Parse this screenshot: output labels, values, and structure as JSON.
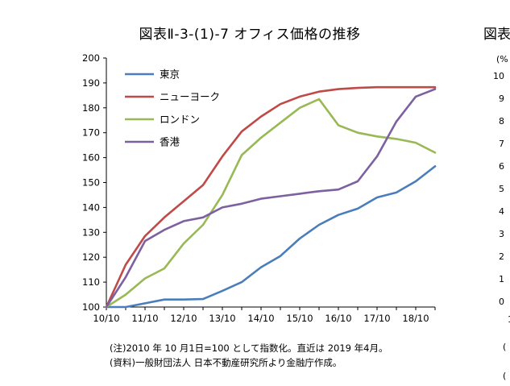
{
  "title": "図表Ⅱ-3-(1)-7 オフィス価格の推移",
  "right_panel": {
    "title": "図表",
    "unit": "(%",
    "y_ticks": [
      "10",
      "9",
      "8",
      "7",
      "6",
      "5",
      "4",
      "3",
      "2",
      "1",
      "0"
    ],
    "x_first": "1",
    "note_1": "(",
    "note_2": "("
  },
  "notes": {
    "line1": "(注)2010 年 10 月1日=100 として指数化。直近は 2019 年4月。",
    "line2": "(資料)一般財団法人 日本不動産研究所より金融庁作成。"
  },
  "chart_data": {
    "type": "line",
    "x_tick_labels": [
      "10/10",
      "11/10",
      "12/10",
      "13/10",
      "14/10",
      "15/10",
      "16/10",
      "17/10",
      "18/10"
    ],
    "x": [
      "2010/10",
      "2011/04",
      "2011/10",
      "2012/04",
      "2012/10",
      "2013/04",
      "2013/10",
      "2014/04",
      "2014/10",
      "2015/04",
      "2015/10",
      "2016/04",
      "2016/10",
      "2017/04",
      "2017/10",
      "2018/04",
      "2018/10",
      "2019/04"
    ],
    "ylim": [
      100,
      200
    ],
    "y_ticks": [
      100,
      110,
      120,
      130,
      140,
      150,
      160,
      170,
      180,
      190,
      200
    ],
    "legend_position": "top-left",
    "grid": false,
    "series": [
      {
        "name": "東京",
        "color": "#4a7ebb",
        "values": [
          100,
          100,
          101.5,
          103,
          103,
          103.2,
          106.5,
          110,
          116,
          120.5,
          127.5,
          133,
          137,
          139.5,
          144,
          146,
          150.5,
          156.5
        ]
      },
      {
        "name": "ニューヨーク",
        "color": "#be4b48",
        "values": [
          100,
          117,
          128.5,
          136,
          142.5,
          149,
          160.5,
          170.5,
          176.5,
          181.5,
          184.5,
          186.5,
          187.5,
          188,
          188.3,
          188.3,
          188.3,
          188.3
        ]
      },
      {
        "name": "ロンドン",
        "color": "#98b954",
        "values": [
          100,
          105,
          111.5,
          115.5,
          125.5,
          133,
          145,
          161,
          168,
          174,
          180,
          183.5,
          173,
          170,
          168.5,
          167.5,
          166,
          162
        ]
      },
      {
        "name": "香港",
        "color": "#7d60a0",
        "values": [
          100,
          112,
          126.5,
          131,
          134.5,
          136,
          140,
          141.5,
          143.5,
          144.5,
          145.5,
          146.5,
          147.2,
          150.5,
          160.5,
          174.5,
          184.5,
          187.5
        ]
      }
    ]
  }
}
